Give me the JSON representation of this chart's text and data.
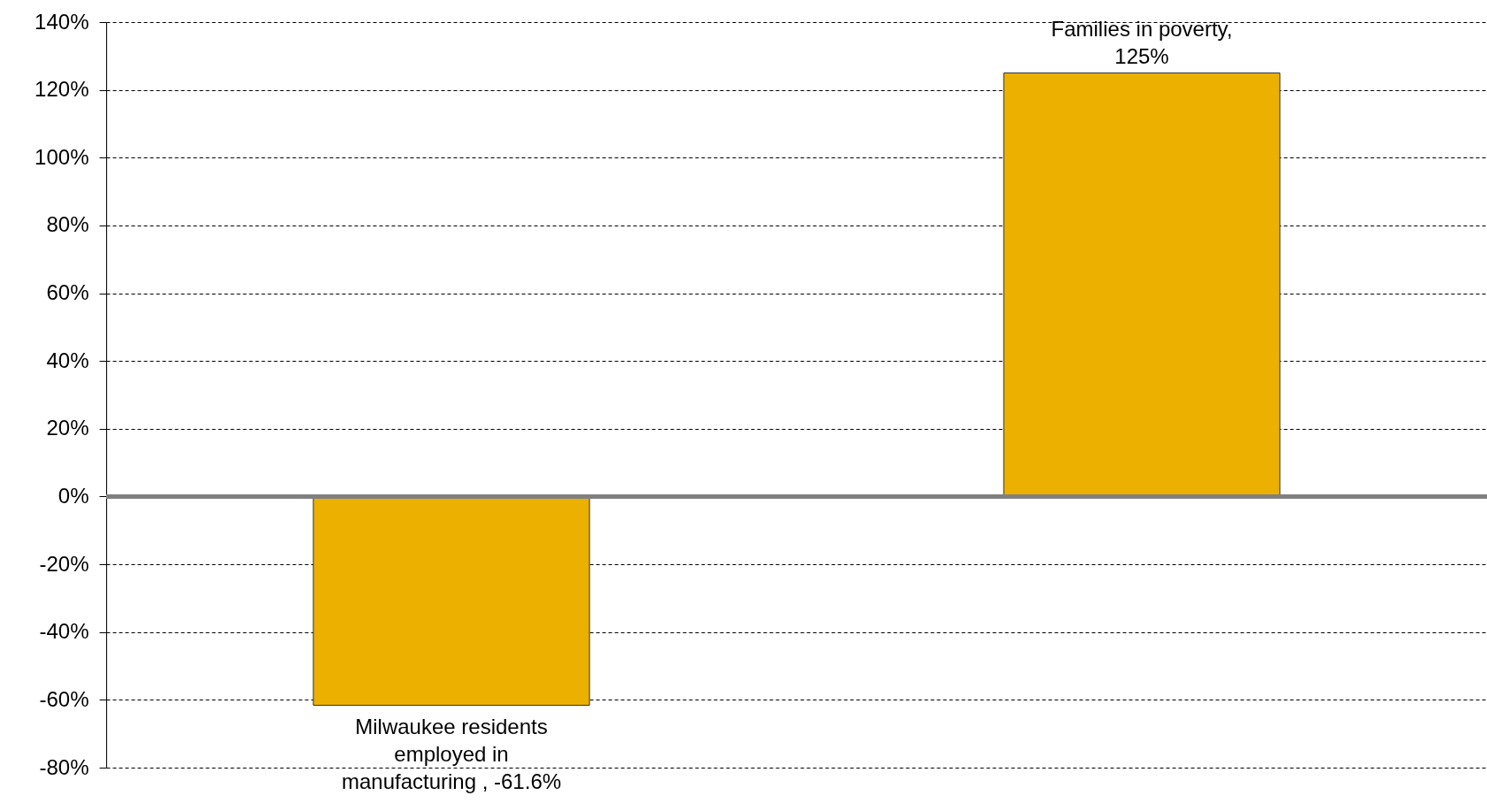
{
  "chart_data": {
    "type": "bar",
    "categories": [
      null,
      null
    ],
    "values": [
      -61.6,
      125
    ],
    "value_labels": [
      "Milwaukee residents employed in manufacturing , -61.6%",
      "Families in poverty, 125%"
    ],
    "color": "#ebb000",
    "ylim": [
      -80,
      140
    ],
    "yticks": [
      {
        "value": -80,
        "label": "-80%"
      },
      {
        "value": -60,
        "label": "-60%"
      },
      {
        "value": -40,
        "label": "-40%"
      },
      {
        "value": -20,
        "label": "-20%"
      },
      {
        "value": 0,
        "label": "0%"
      },
      {
        "value": 20,
        "label": "20%"
      },
      {
        "value": 40,
        "label": "40%"
      },
      {
        "value": 60,
        "label": "60%"
      },
      {
        "value": 80,
        "label": "80%"
      },
      {
        "value": 100,
        "label": "100%"
      },
      {
        "value": 120,
        "label": "120%"
      },
      {
        "value": 140,
        "label": "140%"
      }
    ],
    "grid": "y"
  }
}
